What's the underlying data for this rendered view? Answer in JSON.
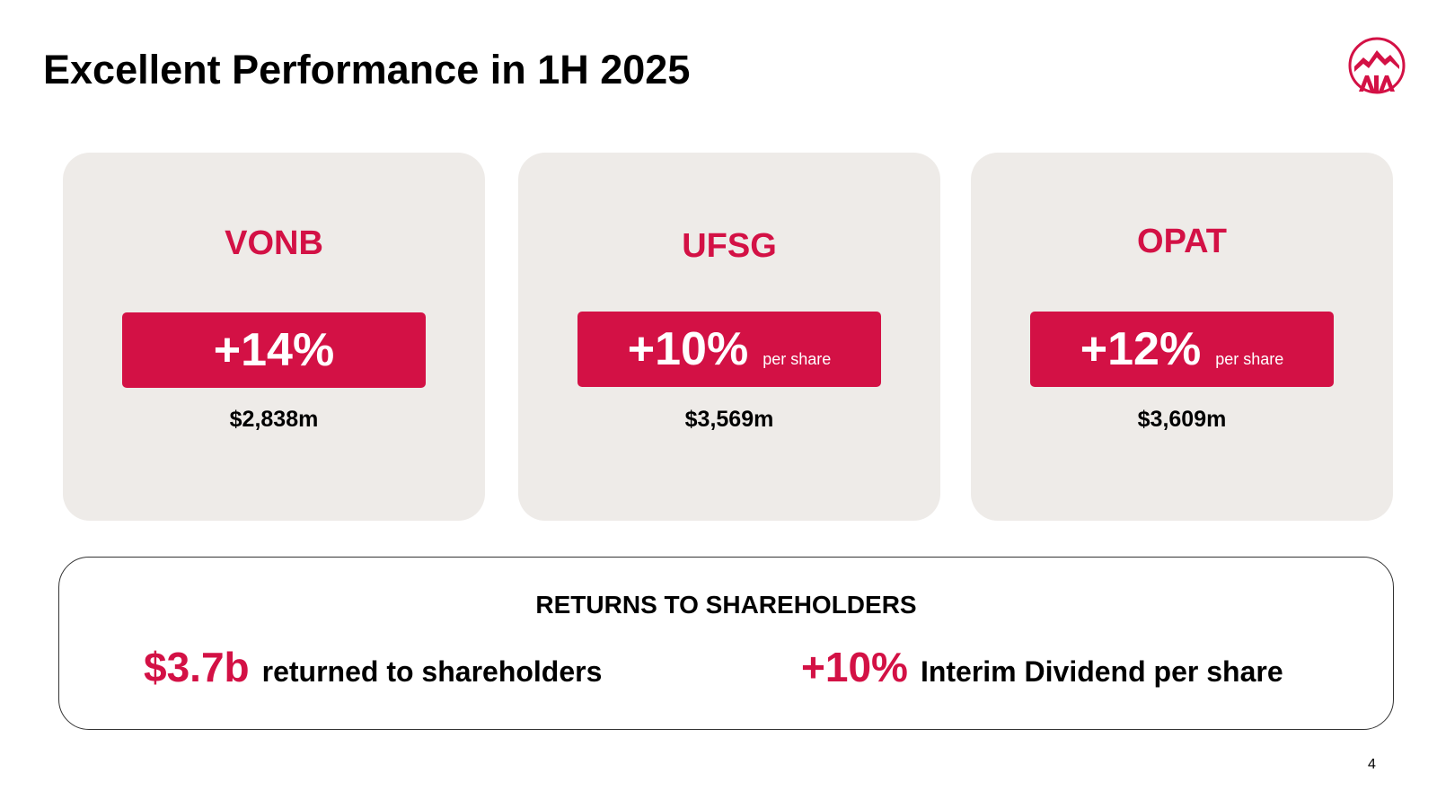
{
  "slide": {
    "title": "Excellent Performance in 1H 2025",
    "page_number": "4",
    "brand_color": "#d31145",
    "logo_text": "AIA"
  },
  "cards": [
    {
      "label": "VONB",
      "value": "+14%",
      "suffix": "",
      "amount": "$2,838m"
    },
    {
      "label": "UFSG",
      "value": "+10%",
      "suffix": "per share",
      "amount": "$3,569m"
    },
    {
      "label": "OPAT",
      "value": "+12%",
      "suffix": "per share",
      "amount": "$3,609m"
    }
  ],
  "returns": {
    "heading": "RETURNS TO SHAREHOLDERS",
    "items": [
      {
        "value": "$3.7b",
        "text": "returned to shareholders"
      },
      {
        "value": "+10%",
        "text": "Interim Dividend per share"
      }
    ]
  }
}
